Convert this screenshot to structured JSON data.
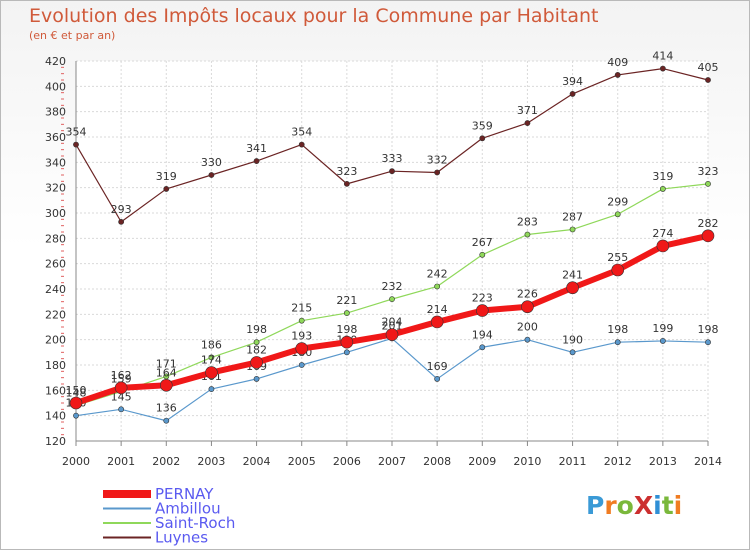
{
  "title": "Evolution des Impôts locaux pour la Commune par Habitant",
  "subtitle": "(en € et par an)",
  "logo": {
    "text": "ProXiti",
    "letter_colors": [
      "#3a9ad6",
      "#f07c22",
      "#7ab83b",
      "#cc2f2f",
      "#2f8fd6",
      "#7ab83b",
      "#f07c22"
    ]
  },
  "chart_data": {
    "type": "line",
    "title": "Evolution des Impôts locaux pour la Commune par Habitant",
    "subtitle": "(en € et par an)",
    "x": [
      2000,
      2001,
      2002,
      2003,
      2004,
      2005,
      2006,
      2007,
      2008,
      2009,
      2010,
      2011,
      2012,
      2013,
      2014
    ],
    "ylim": [
      120,
      420
    ],
    "yticks": [
      120,
      140,
      160,
      180,
      200,
      220,
      240,
      260,
      280,
      300,
      320,
      340,
      360,
      380,
      400,
      420
    ],
    "grid": true,
    "legend_position": "bottom-left",
    "series": [
      {
        "name": "Luynes",
        "color": "#6b2424",
        "width": 1.2,
        "marker": 2.6,
        "values": [
          354,
          293,
          319,
          330,
          341,
          354,
          323,
          333,
          332,
          359,
          371,
          394,
          409,
          414,
          405
        ]
      },
      {
        "name": "Saint-Roch",
        "color": "#8fd85a",
        "width": 1.2,
        "marker": 2.6,
        "values": [
          148,
          159,
          171,
          186,
          198,
          215,
          221,
          232,
          242,
          267,
          283,
          287,
          299,
          319,
          323
        ]
      },
      {
        "name": "Ambillou",
        "color": "#5a98cc",
        "width": 1.2,
        "marker": 2.6,
        "values": [
          140,
          145,
          136,
          161,
          169,
          180,
          190,
          201,
          169,
          194,
          200,
          190,
          198,
          199,
          198
        ]
      },
      {
        "name": "PERNAY",
        "color": "#f01818",
        "width": 6,
        "marker": 6,
        "values": [
          150,
          162,
          164,
          174,
          182,
          193,
          198,
          204,
          214,
          223,
          226,
          241,
          255,
          274,
          282
        ]
      }
    ]
  }
}
